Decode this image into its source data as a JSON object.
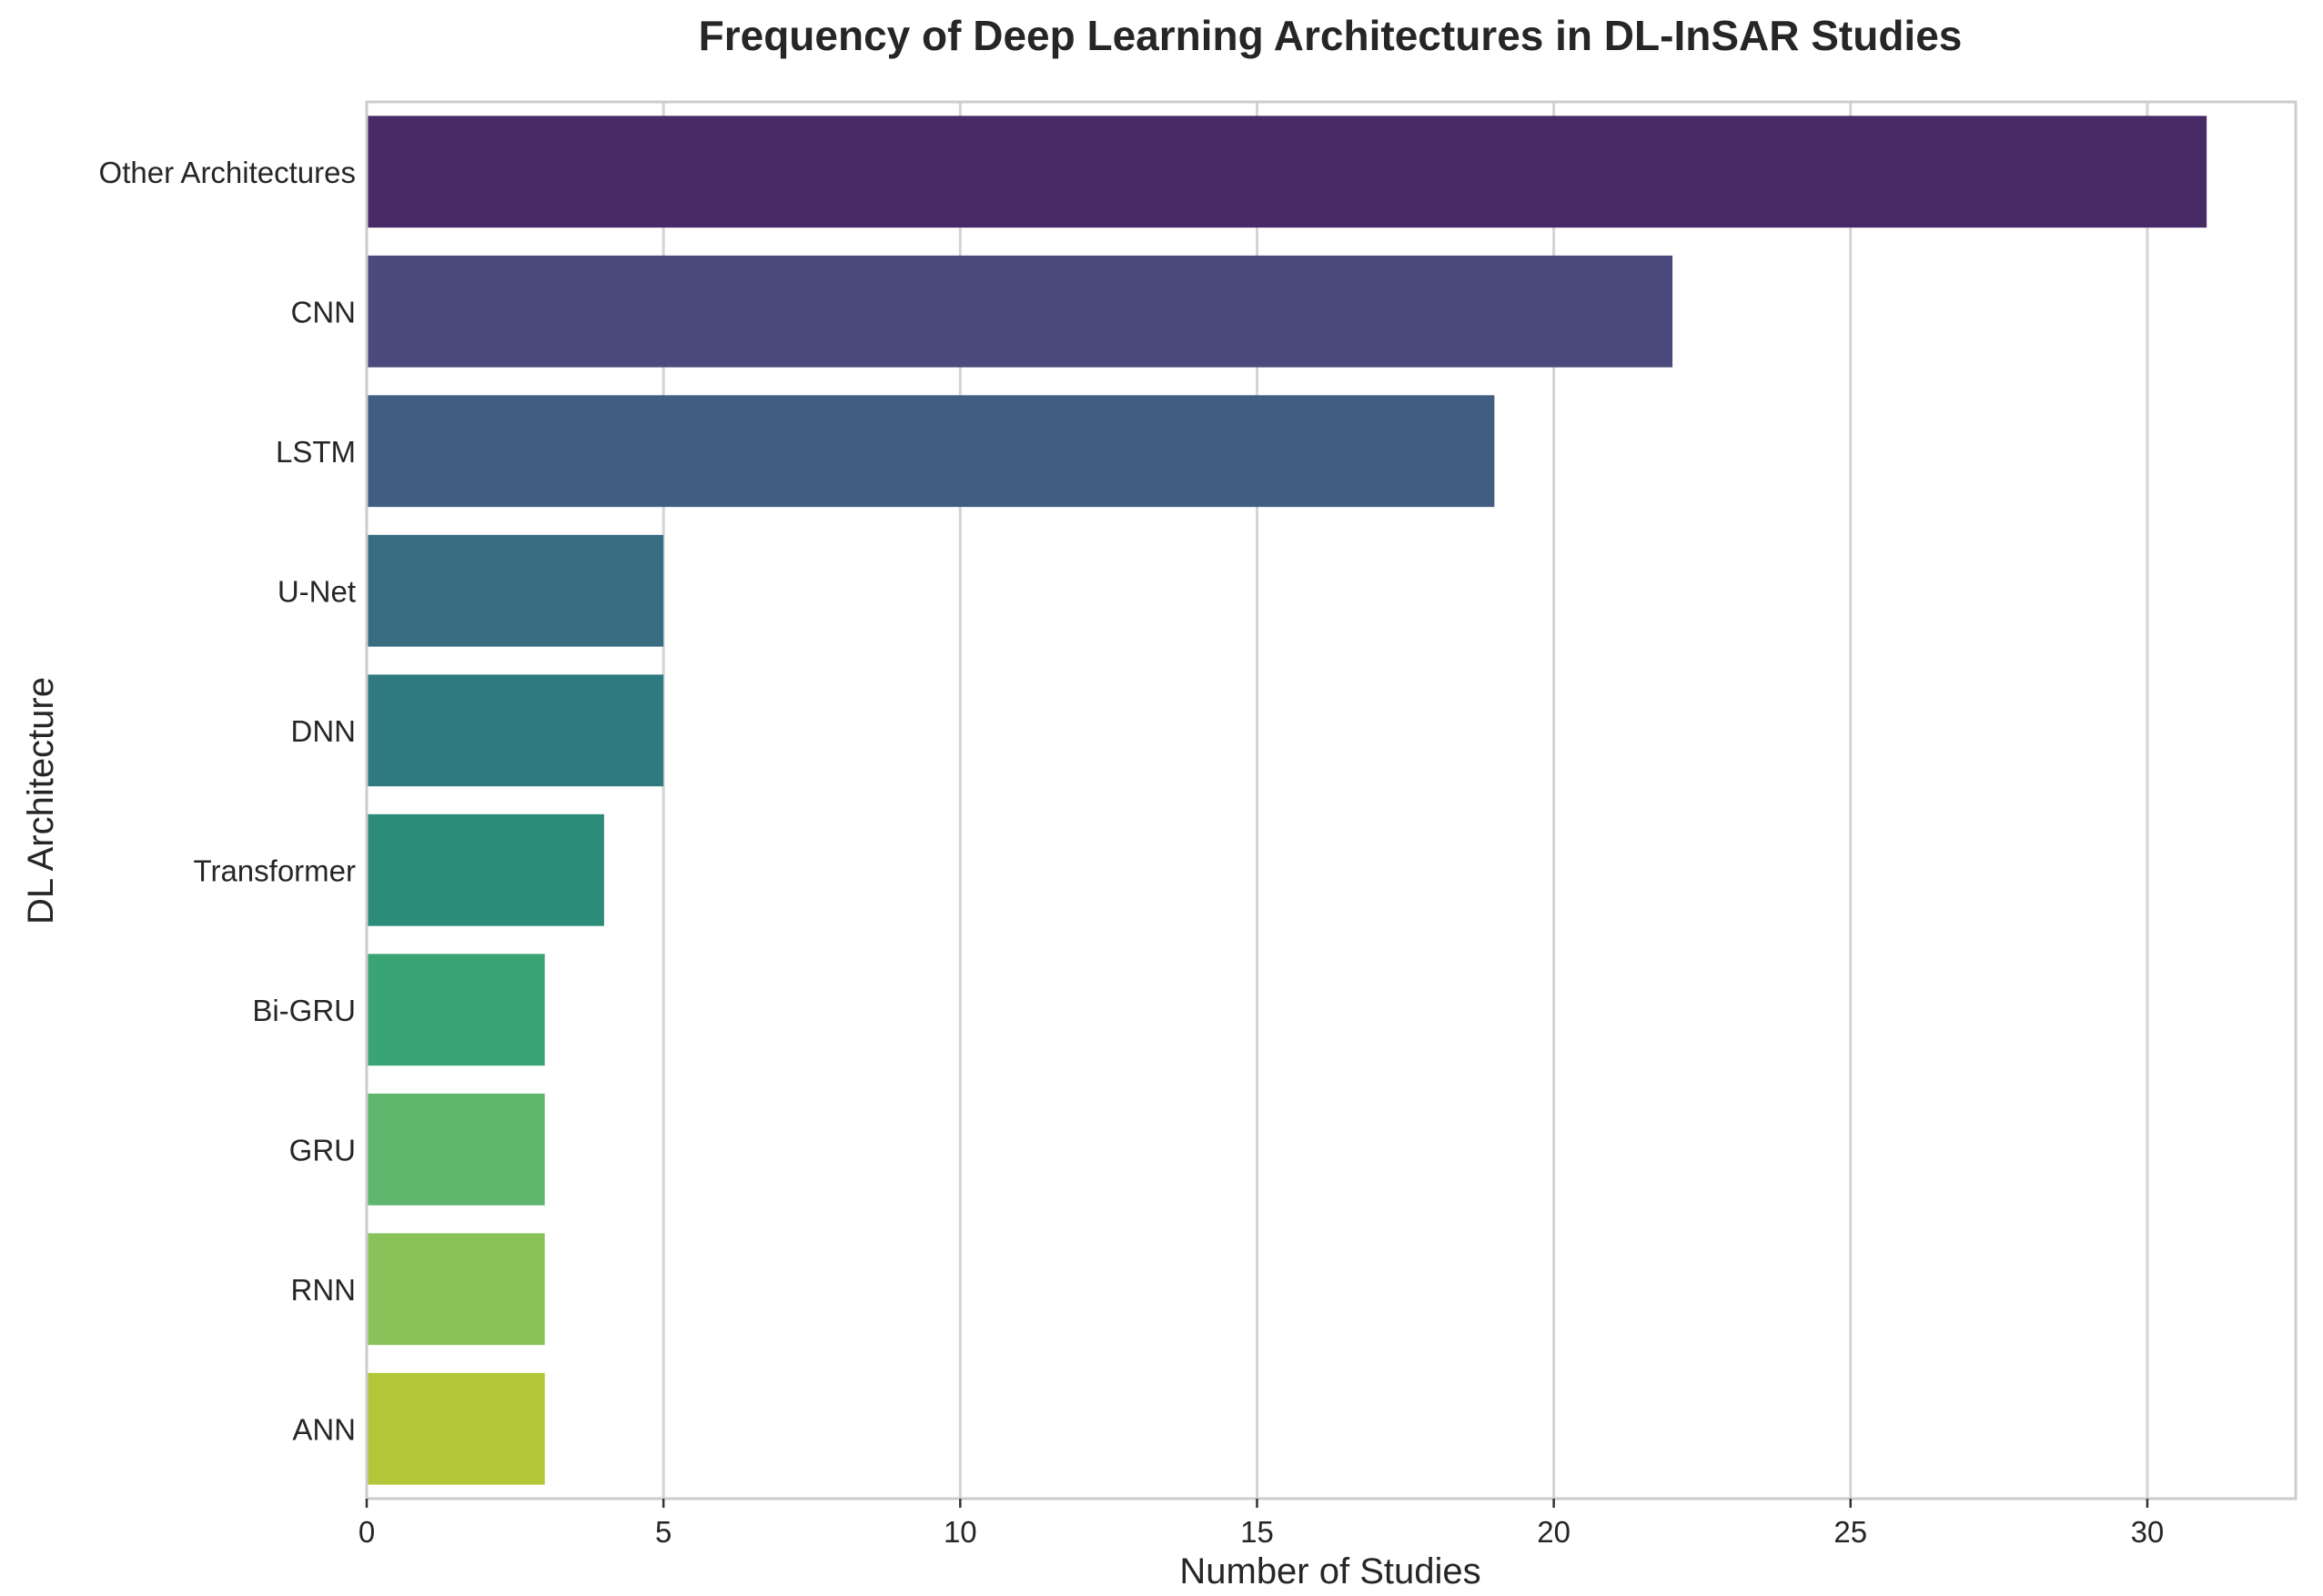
{
  "chart_data": {
    "type": "bar",
    "orientation": "horizontal",
    "title": "Frequency of Deep Learning Architectures in DL-InSAR Studies",
    "xlabel": "Number of Studies",
    "ylabel": "DL Architecture",
    "categories": [
      "Other Architectures",
      "CNN",
      "LSTM",
      "U-Net",
      "DNN",
      "Transformer",
      "Bi-GRU",
      "GRU",
      "RNN",
      "ANN"
    ],
    "values": [
      31,
      22,
      19,
      5,
      5,
      4,
      3,
      3,
      3,
      3
    ],
    "colors": [
      "#482a67",
      "#4a4a7c",
      "#425d82",
      "#386c80",
      "#2f7a80",
      "#2b8c7a",
      "#3ba475",
      "#5fb66d",
      "#8ac25a",
      "#b3c638"
    ],
    "xlim": [
      0,
      32.5
    ],
    "xticks": [
      0,
      5,
      10,
      15,
      20,
      25,
      30
    ],
    "grid": true,
    "legend": "none"
  }
}
